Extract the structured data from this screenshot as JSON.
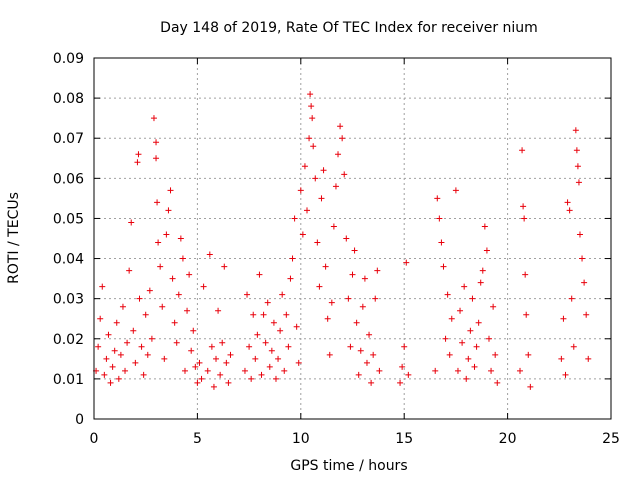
{
  "chart_data": {
    "type": "scatter",
    "title": "Day 148 of 2019, Rate Of TEC Index for receiver nium",
    "xlabel": "GPS time / hours",
    "ylabel": "ROTI / TECUs",
    "xlim": [
      0,
      25
    ],
    "ylim": [
      0,
      0.09
    ],
    "x_ticks": [
      "0",
      "5",
      "10",
      "15",
      "20",
      "25"
    ],
    "y_ticks": [
      "0",
      "0.01",
      "0.02",
      "0.03",
      "0.04",
      "0.05",
      "0.06",
      "0.07",
      "0.08",
      "0.09"
    ],
    "grid": true,
    "marker": "plus",
    "color": "#e8000b",
    "series": [
      {
        "points": [
          [
            0.1,
            0.012
          ],
          [
            0.2,
            0.018
          ],
          [
            0.3,
            0.025
          ],
          [
            0.4,
            0.033
          ],
          [
            0.5,
            0.011
          ],
          [
            0.6,
            0.015
          ],
          [
            0.7,
            0.021
          ],
          [
            0.8,
            0.009
          ],
          [
            0.9,
            0.013
          ],
          [
            1.0,
            0.017
          ],
          [
            1.1,
            0.024
          ],
          [
            1.2,
            0.01
          ],
          [
            1.3,
            0.016
          ],
          [
            1.4,
            0.028
          ],
          [
            1.5,
            0.012
          ],
          [
            1.6,
            0.019
          ],
          [
            1.7,
            0.037
          ],
          [
            1.8,
            0.049
          ],
          [
            1.9,
            0.022
          ],
          [
            2.0,
            0.014
          ],
          [
            2.1,
            0.064
          ],
          [
            2.15,
            0.066
          ],
          [
            2.2,
            0.03
          ],
          [
            2.3,
            0.018
          ],
          [
            2.4,
            0.011
          ],
          [
            2.5,
            0.026
          ],
          [
            2.6,
            0.016
          ],
          [
            2.7,
            0.032
          ],
          [
            2.8,
            0.02
          ],
          [
            2.9,
            0.075
          ],
          [
            3.0,
            0.069
          ],
          [
            3.0,
            0.065
          ],
          [
            3.05,
            0.054
          ],
          [
            3.1,
            0.044
          ],
          [
            3.2,
            0.038
          ],
          [
            3.3,
            0.028
          ],
          [
            3.4,
            0.015
          ],
          [
            3.5,
            0.046
          ],
          [
            3.6,
            0.052
          ],
          [
            3.7,
            0.057
          ],
          [
            3.8,
            0.035
          ],
          [
            3.9,
            0.024
          ],
          [
            4.0,
            0.019
          ],
          [
            4.1,
            0.031
          ],
          [
            4.2,
            0.045
          ],
          [
            4.3,
            0.04
          ],
          [
            4.4,
            0.012
          ],
          [
            4.5,
            0.027
          ],
          [
            4.6,
            0.036
          ],
          [
            4.7,
            0.017
          ],
          [
            4.8,
            0.022
          ],
          [
            4.9,
            0.013
          ],
          [
            5.0,
            0.009
          ],
          [
            5.1,
            0.014
          ],
          [
            5.2,
            0.01
          ],
          [
            5.3,
            0.033
          ],
          [
            5.5,
            0.012
          ],
          [
            5.6,
            0.041
          ],
          [
            5.7,
            0.018
          ],
          [
            5.8,
            0.008
          ],
          [
            5.9,
            0.015
          ],
          [
            6.0,
            0.027
          ],
          [
            6.1,
            0.011
          ],
          [
            6.2,
            0.019
          ],
          [
            6.3,
            0.038
          ],
          [
            6.4,
            0.014
          ],
          [
            6.5,
            0.009
          ],
          [
            6.6,
            0.016
          ],
          [
            7.3,
            0.012
          ],
          [
            7.4,
            0.031
          ],
          [
            7.5,
            0.018
          ],
          [
            7.6,
            0.01
          ],
          [
            7.7,
            0.026
          ],
          [
            7.8,
            0.015
          ],
          [
            7.9,
            0.021
          ],
          [
            8.0,
            0.036
          ],
          [
            8.1,
            0.011
          ],
          [
            8.2,
            0.026
          ],
          [
            8.3,
            0.019
          ],
          [
            8.4,
            0.029
          ],
          [
            8.5,
            0.013
          ],
          [
            8.6,
            0.017
          ],
          [
            8.7,
            0.024
          ],
          [
            8.8,
            0.01
          ],
          [
            8.9,
            0.015
          ],
          [
            9.0,
            0.022
          ],
          [
            9.1,
            0.031
          ],
          [
            9.2,
            0.012
          ],
          [
            9.3,
            0.026
          ],
          [
            9.4,
            0.018
          ],
          [
            9.5,
            0.035
          ],
          [
            9.6,
            0.04
          ],
          [
            9.7,
            0.05
          ],
          [
            9.8,
            0.023
          ],
          [
            9.9,
            0.014
          ],
          [
            10.0,
            0.057
          ],
          [
            10.1,
            0.046
          ],
          [
            10.2,
            0.063
          ],
          [
            10.3,
            0.052
          ],
          [
            10.4,
            0.07
          ],
          [
            10.45,
            0.081
          ],
          [
            10.5,
            0.078
          ],
          [
            10.55,
            0.075
          ],
          [
            10.6,
            0.068
          ],
          [
            10.7,
            0.06
          ],
          [
            10.8,
            0.044
          ],
          [
            10.9,
            0.033
          ],
          [
            11.0,
            0.055
          ],
          [
            11.1,
            0.062
          ],
          [
            11.2,
            0.038
          ],
          [
            11.3,
            0.025
          ],
          [
            11.4,
            0.016
          ],
          [
            11.5,
            0.029
          ],
          [
            11.6,
            0.048
          ],
          [
            11.7,
            0.058
          ],
          [
            11.8,
            0.066
          ],
          [
            11.9,
            0.073
          ],
          [
            12.0,
            0.07
          ],
          [
            12.1,
            0.061
          ],
          [
            12.2,
            0.045
          ],
          [
            12.3,
            0.03
          ],
          [
            12.4,
            0.018
          ],
          [
            12.5,
            0.036
          ],
          [
            12.6,
            0.042
          ],
          [
            12.7,
            0.024
          ],
          [
            12.8,
            0.011
          ],
          [
            12.9,
            0.017
          ],
          [
            13.0,
            0.028
          ],
          [
            13.1,
            0.035
          ],
          [
            13.2,
            0.014
          ],
          [
            13.3,
            0.021
          ],
          [
            13.4,
            0.009
          ],
          [
            13.5,
            0.016
          ],
          [
            13.6,
            0.03
          ],
          [
            13.7,
            0.037
          ],
          [
            13.8,
            0.012
          ],
          [
            14.8,
            0.009
          ],
          [
            14.9,
            0.013
          ],
          [
            15.0,
            0.018
          ],
          [
            15.1,
            0.039
          ],
          [
            15.2,
            0.011
          ],
          [
            16.5,
            0.012
          ],
          [
            16.6,
            0.055
          ],
          [
            16.7,
            0.05
          ],
          [
            16.8,
            0.044
          ],
          [
            16.9,
            0.038
          ],
          [
            17.0,
            0.02
          ],
          [
            17.1,
            0.031
          ],
          [
            17.2,
            0.016
          ],
          [
            17.3,
            0.025
          ],
          [
            17.5,
            0.057
          ],
          [
            17.6,
            0.012
          ],
          [
            17.7,
            0.027
          ],
          [
            17.8,
            0.019
          ],
          [
            17.9,
            0.033
          ],
          [
            18.0,
            0.01
          ],
          [
            18.1,
            0.015
          ],
          [
            18.2,
            0.022
          ],
          [
            18.3,
            0.03
          ],
          [
            18.4,
            0.013
          ],
          [
            18.5,
            0.018
          ],
          [
            18.6,
            0.024
          ],
          [
            18.7,
            0.034
          ],
          [
            18.8,
            0.037
          ],
          [
            18.9,
            0.048
          ],
          [
            19.0,
            0.042
          ],
          [
            19.1,
            0.02
          ],
          [
            19.2,
            0.012
          ],
          [
            19.3,
            0.028
          ],
          [
            19.4,
            0.016
          ],
          [
            19.5,
            0.009
          ],
          [
            20.6,
            0.012
          ],
          [
            20.7,
            0.067
          ],
          [
            20.75,
            0.053
          ],
          [
            20.8,
            0.05
          ],
          [
            20.85,
            0.036
          ],
          [
            20.9,
            0.026
          ],
          [
            21.0,
            0.016
          ],
          [
            21.1,
            0.008
          ],
          [
            22.6,
            0.015
          ],
          [
            22.7,
            0.025
          ],
          [
            22.8,
            0.011
          ],
          [
            22.9,
            0.054
          ],
          [
            23.0,
            0.052
          ],
          [
            23.1,
            0.03
          ],
          [
            23.2,
            0.018
          ],
          [
            23.3,
            0.072
          ],
          [
            23.35,
            0.067
          ],
          [
            23.4,
            0.063
          ],
          [
            23.45,
            0.059
          ],
          [
            23.5,
            0.046
          ],
          [
            23.6,
            0.04
          ],
          [
            23.7,
            0.034
          ],
          [
            23.8,
            0.026
          ],
          [
            23.9,
            0.015
          ]
        ]
      }
    ]
  }
}
